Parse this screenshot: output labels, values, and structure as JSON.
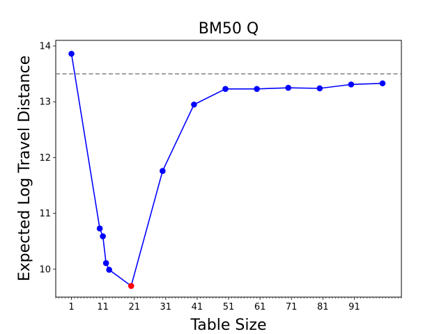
{
  "chart_data": {
    "type": "line",
    "title": "BM50 Q",
    "xlabel": "Table Size",
    "ylabel": "Expected Log Travel Distance",
    "xlim": [
      -4.0,
      106.0
    ],
    "ylim": [
      9.5,
      14.1
    ],
    "x_ticks": [
      "1",
      "11",
      "21",
      "31",
      "41",
      "51",
      "61",
      "71",
      "81",
      "91"
    ],
    "x_tick_values": [
      1,
      11,
      21,
      31,
      41,
      51,
      61,
      71,
      81,
      91
    ],
    "y_ticks": [
      "10",
      "11",
      "12",
      "13",
      "14"
    ],
    "y_tick_values": [
      10,
      11,
      12,
      13,
      14
    ],
    "reference_line": {
      "y": 13.5,
      "style": "dashed",
      "color": "#808080"
    },
    "series": [
      {
        "color": "#0000ff",
        "x": [
          1,
          10,
          11,
          12,
          13,
          20,
          30,
          40,
          50,
          60,
          70,
          80,
          90,
          100
        ],
        "y": [
          13.86,
          10.73,
          10.59,
          10.11,
          9.99,
          9.7,
          11.76,
          12.95,
          13.23,
          13.23,
          13.25,
          13.24,
          13.31,
          13.33
        ]
      }
    ],
    "highlight_point": {
      "x": 20,
      "y": 9.7,
      "color": "#ff0000"
    }
  }
}
